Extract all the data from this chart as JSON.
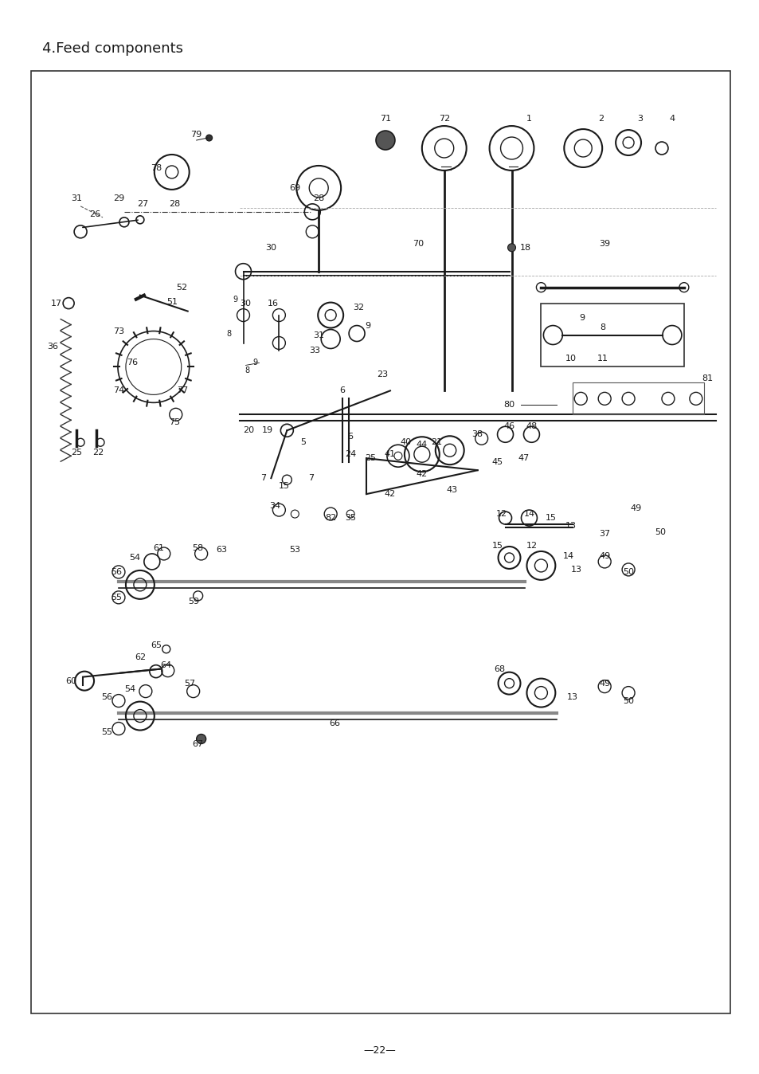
{
  "title": "4.Feed components",
  "page_number": "—22—",
  "background_color": "#ffffff",
  "border_color": "#000000",
  "text_color": "#1a1a1a",
  "fig_width": 9.54,
  "fig_height": 13.48,
  "dpi": 100
}
